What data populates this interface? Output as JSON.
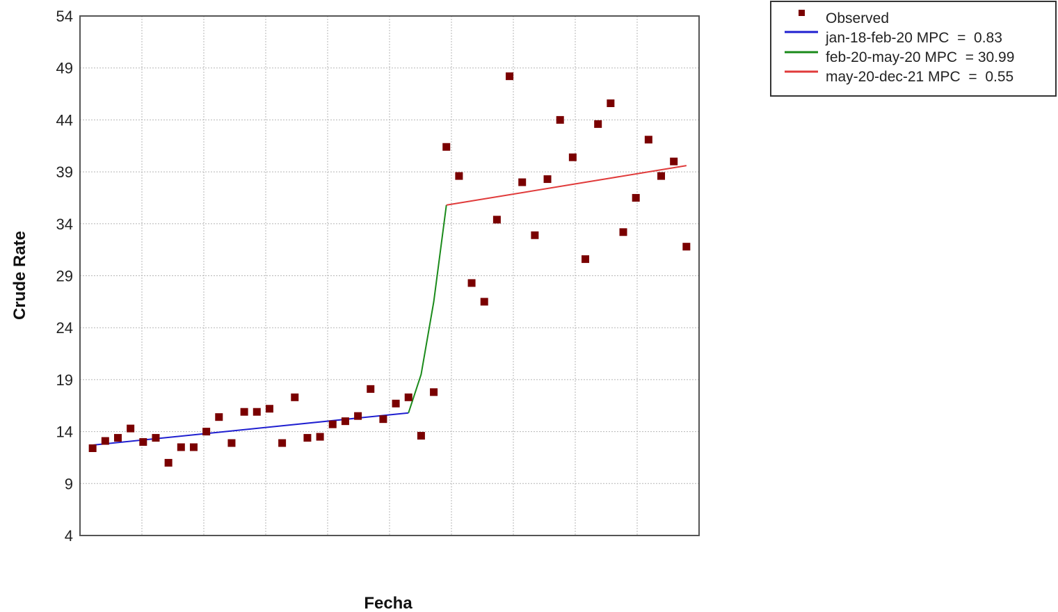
{
  "chart_data": {
    "type": "scatter",
    "xlabel": "Fecha",
    "ylabel": "Crude Rate",
    "ylim": [
      4,
      54
    ],
    "yticks": [
      4,
      9,
      14,
      19,
      24,
      29,
      34,
      39,
      44,
      49,
      54
    ],
    "xlim": [
      0,
      49
    ],
    "grid": true,
    "legend_position": "top-right",
    "point_color": "#7a0000",
    "observed": {
      "name": "Observed",
      "x": [
        1,
        2,
        3,
        4,
        5,
        6,
        7,
        8,
        9,
        10,
        11,
        12,
        13,
        14,
        15,
        16,
        17,
        18,
        19,
        20,
        21,
        22,
        23,
        24,
        25,
        26,
        27,
        28,
        29,
        30,
        31,
        32,
        33,
        34,
        35,
        36,
        37,
        38,
        39,
        40,
        41,
        42,
        43,
        44,
        45,
        46,
        47,
        48
      ],
      "y": [
        12.4,
        13.1,
        13.4,
        14.3,
        13.0,
        13.4,
        11.0,
        12.5,
        12.5,
        14.0,
        15.4,
        12.9,
        15.9,
        15.9,
        16.2,
        12.9,
        17.3,
        13.4,
        13.5,
        14.7,
        15.0,
        15.5,
        18.1,
        15.2,
        16.7,
        17.3,
        13.6,
        17.8,
        41.4,
        38.6,
        28.3,
        26.5,
        34.4,
        48.2,
        38.0,
        32.9,
        38.3,
        44.0,
        40.4,
        30.6,
        43.6,
        45.6,
        33.2,
        36.5,
        42.1,
        38.6,
        40.0,
        31.8
      ]
    },
    "series": [
      {
        "name": "jan-18-feb-20 MPC  =  0.83",
        "color": "#1f1fd0",
        "x": [
          1,
          26
        ],
        "y": [
          12.7,
          15.8
        ]
      },
      {
        "name": "feb-20-may-20 MPC  = 30.99",
        "color": "#1a8a1a",
        "x": [
          26,
          27,
          28,
          29
        ],
        "y": [
          15.8,
          19.5,
          26.5,
          35.8
        ]
      },
      {
        "name": "may-20-dec-21 MPC  =  0.55",
        "color": "#e03a3a",
        "x": [
          29,
          48
        ],
        "y": [
          35.8,
          39.6
        ]
      }
    ]
  }
}
